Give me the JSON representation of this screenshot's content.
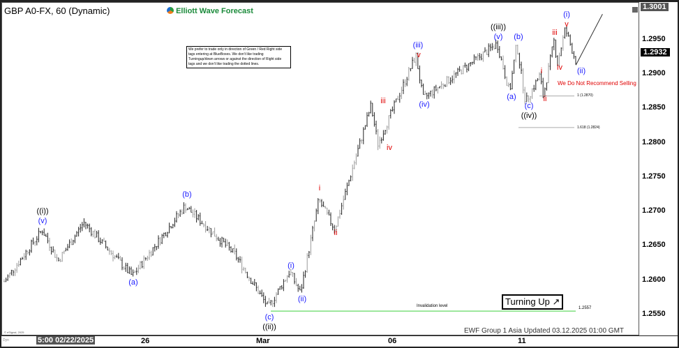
{
  "header": {
    "symbol_title": "GBP A0-FX, 60 (Dynamic)",
    "brand": "Elliott Wave Forecast"
  },
  "note": "We prefer to trade only in direction of Green / Red Right side tags entering at BlueBoxes. We don't like trading Turningup/down arrows or against the direction of Right side tags and we don't like trading the dotted lines.",
  "footer": {
    "updated": "EWF Group 1 Asia Updated 03.12.2025 01:00 GMT",
    "copyright": "© eSignal, 2025",
    "dyn": "Dyn"
  },
  "badges": {
    "turning_up": "Turning Up ↗",
    "no_selling": "We Do Not Recommend Selling",
    "invalidation": "Invalidation level"
  },
  "colors": {
    "wave_blue": "#1a1aff",
    "wave_red": "#e00000",
    "invalidation_green": "#7ddf7d",
    "brand_green": "#1a8a3a"
  },
  "chart_data": {
    "type": "ohlc",
    "interval": "60 min",
    "y_ticks": [
      "1.2550",
      "1.2600",
      "1.2650",
      "1.2700",
      "1.2750",
      "1.2800",
      "1.2850",
      "1.2900",
      "1.2950"
    ],
    "ylim": [
      1.254,
      1.3001
    ],
    "high_label": "1.3001",
    "last_price": "1.2932",
    "x_ticks": [
      "5:00 02/22/2025",
      "26",
      "Mar",
      "06",
      "11"
    ],
    "price_path": [
      [
        "02/20 17:00",
        1.26
      ],
      [
        "02/21 14:00",
        1.2675
      ],
      [
        "02/22 08:00",
        1.263
      ],
      [
        "02/24 13:00",
        1.2686
      ],
      [
        "02/25 16:00",
        1.2608
      ],
      [
        "02/27 00:00",
        1.271
      ],
      [
        "02/28 06:00",
        1.264
      ],
      [
        "03/03 03:00",
        1.2562
      ],
      [
        "03/03 15:00",
        1.2615
      ],
      [
        "03/03 21:00",
        1.2583
      ],
      [
        "03/04 07:00",
        1.2719
      ],
      [
        "03/04 16:00",
        1.2676
      ],
      [
        "03/05 12:00",
        1.2856
      ],
      [
        "03/05 16:00",
        1.28
      ],
      [
        "03/06 13:00",
        1.2929
      ],
      [
        "03/06 17:00",
        1.2866
      ],
      [
        "03/10 10:00",
        1.2946
      ],
      [
        "03/10 17:00",
        1.2875
      ],
      [
        "03/10 21:00",
        1.2946
      ],
      [
        "03/11 02:00",
        1.2861
      ],
      [
        "03/11 10:00",
        1.29
      ],
      [
        "03/11 12:00",
        1.2869
      ],
      [
        "03/11 18:00",
        1.295
      ],
      [
        "03/11 20:00",
        1.2917
      ],
      [
        "03/12 00:00",
        1.2968
      ],
      [
        "03/12 06:00",
        1.292
      ]
    ],
    "levels": [
      {
        "label": "1 (1.2870)",
        "value": 1.287
      },
      {
        "label": "1.618 (1.2824)",
        "value": 1.2824
      },
      {
        "label": "1.2557",
        "value": 1.2557
      }
    ],
    "wave_labels": [
      {
        "text": "((i))",
        "color": "black"
      },
      {
        "text": "(v)",
        "color": "blue"
      },
      {
        "text": "(a)",
        "color": "blue"
      },
      {
        "text": "(b)",
        "color": "blue"
      },
      {
        "text": "(c)",
        "color": "blue"
      },
      {
        "text": "((ii))",
        "color": "black"
      },
      {
        "text": "(i)",
        "color": "blue"
      },
      {
        "text": "(ii)",
        "color": "blue"
      },
      {
        "text": "i",
        "color": "red"
      },
      {
        "text": "ii",
        "color": "red"
      },
      {
        "text": "iii",
        "color": "red"
      },
      {
        "text": "iv",
        "color": "red"
      },
      {
        "text": "(iii)",
        "color": "blue"
      },
      {
        "text": "v",
        "color": "red"
      },
      {
        "text": "(iv)",
        "color": "blue"
      },
      {
        "text": "((iii))",
        "color": "black"
      },
      {
        "text": "(v)",
        "color": "blue"
      },
      {
        "text": "(a)",
        "color": "blue"
      },
      {
        "text": "(b)",
        "color": "blue"
      },
      {
        "text": "(c)",
        "color": "blue"
      },
      {
        "text": "((iv))",
        "color": "black"
      },
      {
        "text": "i",
        "color": "red"
      },
      {
        "text": "ii",
        "color": "red"
      },
      {
        "text": "iii",
        "color": "red"
      },
      {
        "text": "iv",
        "color": "red"
      },
      {
        "text": "v",
        "color": "red"
      },
      {
        "text": "(i)",
        "color": "blue"
      },
      {
        "text": "(ii)",
        "color": "blue"
      }
    ],
    "projection": "up after (ii)"
  }
}
